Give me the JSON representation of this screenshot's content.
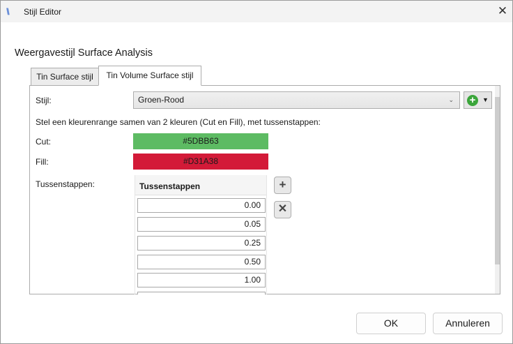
{
  "window": {
    "title": "Stijl Editor",
    "close_label": "✕"
  },
  "heading": "Weergavestijl Surface Analysis",
  "tabs": [
    {
      "label": "Tin Surface stijl",
      "active": false
    },
    {
      "label": "Tin Volume Surface stijl",
      "active": true
    }
  ],
  "form": {
    "stijl_label": "Stijl:",
    "stijl_value": "Groen-Rood",
    "description": "Stel een kleurenrange samen van 2 kleuren (Cut en Fill), met tussenstappen:",
    "cut_label": "Cut:",
    "cut_color": "#5DBB63",
    "fill_label": "Fill:",
    "fill_color": "#D31A38",
    "steps_label": "Tussenstappen:",
    "grid_header": "Tussenstappen",
    "steps": [
      "0.00",
      "0.05",
      "0.25",
      "0.50",
      "1.00"
    ]
  },
  "buttons": {
    "ok": "OK",
    "cancel": "Annuleren"
  }
}
